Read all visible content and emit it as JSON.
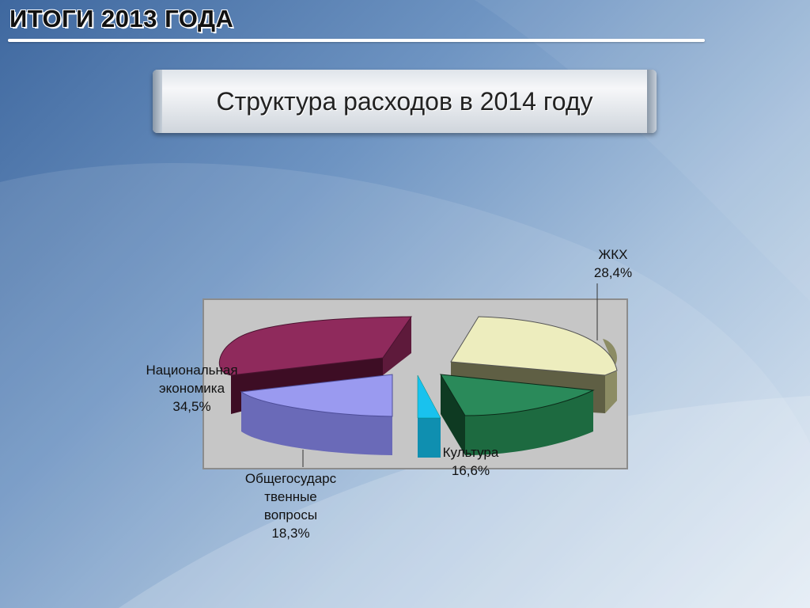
{
  "header": {
    "title": "ИТОГИ 2013 ГОДА"
  },
  "subtitle": "Структура расходов в 2014 году",
  "chart_data": {
    "type": "pie",
    "title": "Структура расходов в 2014 году",
    "slices": [
      {
        "label": "ЖКХ",
        "value": 28.4,
        "display": "28,4%",
        "color": "#ededbe"
      },
      {
        "label": "Культура",
        "value": 16.6,
        "display": "16,6%",
        "color": "#2a8a5a"
      },
      {
        "label": "Общегосударственные вопросы",
        "value": 18.3,
        "display": "18,3%",
        "color": "#9a9af0"
      },
      {
        "label": "Национальная экономика",
        "value": 34.5,
        "display": "34,5%",
        "color": "#8f2a5c"
      }
    ],
    "small_slice": {
      "color": "#19c2ee"
    },
    "labels": {
      "zhkh_name": "ЖКХ",
      "zhkh_value": "28,4%",
      "kultura_name": "Культура",
      "kultura_value": "16,6%",
      "obshch_line1": "Общегосударс",
      "obshch_line2": "твенные",
      "obshch_line3": "вопросы",
      "obshch_value": "18,3%",
      "nacek_line1": "Национальная",
      "nacek_line2": "экономика",
      "nacek_value": "34,5%"
    }
  }
}
